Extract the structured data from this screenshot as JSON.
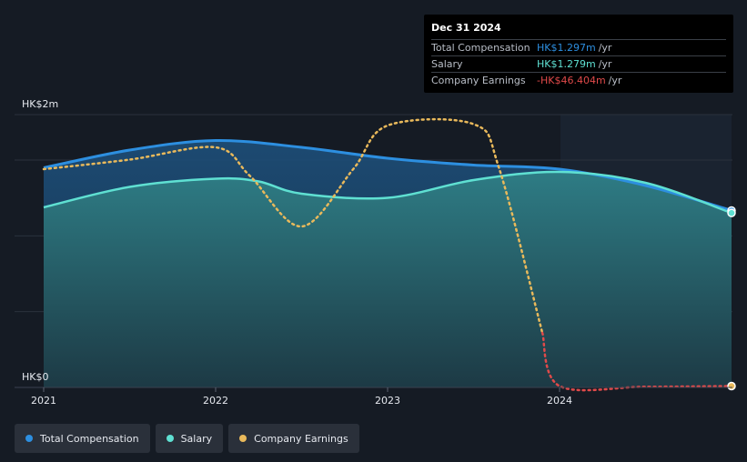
{
  "chart_data": {
    "type": "line",
    "x_ticks": [
      "2021",
      "2022",
      "2023",
      "2024"
    ],
    "y_ticks": [
      "HK$2m",
      "HK$0"
    ],
    "ylim": [
      0,
      2.0
    ],
    "unit": "HK$m",
    "series": [
      {
        "name": "Total Compensation",
        "color": "#2d8fe0",
        "x": [
          2021.0,
          2021.5,
          2022.0,
          2022.5,
          2023.0,
          2023.5,
          2024.0,
          2024.5,
          2025.0
        ],
        "values": [
          1.61,
          1.74,
          1.81,
          1.76,
          1.68,
          1.63,
          1.6,
          1.48,
          1.297
        ]
      },
      {
        "name": "Salary",
        "color": "#5fe0d2",
        "x": [
          2021.0,
          2021.5,
          2022.0,
          2022.25,
          2022.5,
          2023.0,
          2023.5,
          2024.0,
          2024.5,
          2025.0
        ],
        "values": [
          1.32,
          1.47,
          1.53,
          1.51,
          1.42,
          1.39,
          1.52,
          1.58,
          1.5,
          1.279
        ]
      },
      {
        "name": "Company Earnings",
        "color": "#e9b95b",
        "negative_color": "#e04a4a",
        "x": [
          2021.0,
          2021.5,
          2022.0,
          2022.2,
          2022.5,
          2022.8,
          2023.0,
          2023.5,
          2023.65,
          2023.9,
          2024.0,
          2024.5,
          2025.0
        ],
        "values": [
          1.6,
          1.67,
          1.76,
          1.55,
          1.18,
          1.6,
          1.92,
          1.93,
          1.6,
          0.4,
          0.01,
          0.005,
          0.01
        ]
      }
    ],
    "legend_position": "bottom-left"
  },
  "tooltip": {
    "date": "Dec 31 2024",
    "rows": [
      {
        "label": "Total Compensation",
        "value": "HK$1.297m",
        "unit": "/yr",
        "color": "#2d8fe0"
      },
      {
        "label": "Salary",
        "value": "HK$1.279m",
        "unit": "/yr",
        "color": "#5fe0d2"
      },
      {
        "label": "Company Earnings",
        "value": "-HK$46.404m",
        "unit": "/yr",
        "color": "#e04a4a"
      }
    ]
  },
  "legend": [
    {
      "label": "Total Compensation",
      "color": "#2d8fe0"
    },
    {
      "label": "Salary",
      "color": "#5fe0d2"
    },
    {
      "label": "Company Earnings",
      "color": "#e9b95b"
    }
  ]
}
